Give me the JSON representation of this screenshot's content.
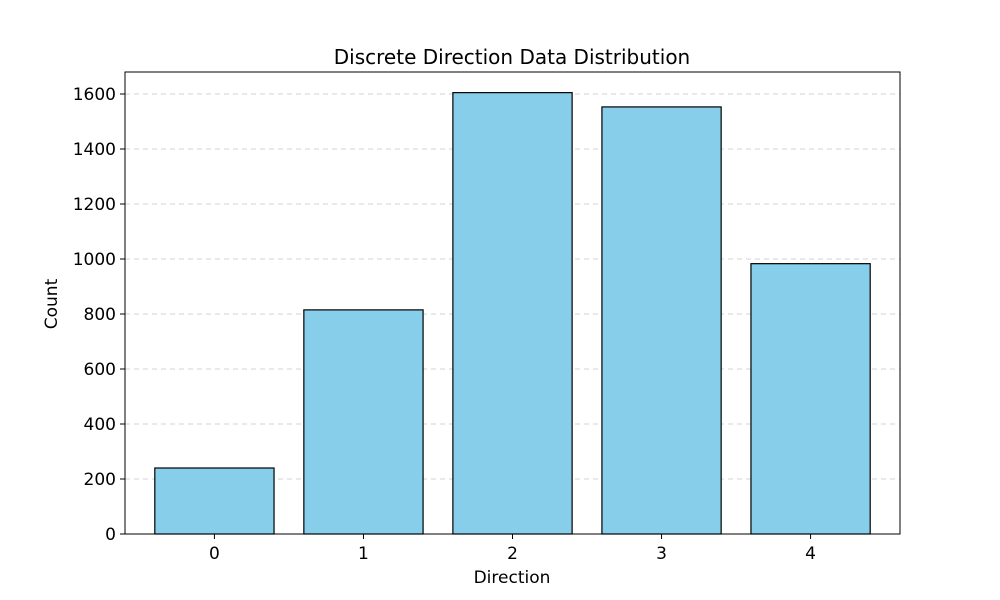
{
  "chart_data": {
    "type": "bar",
    "title": "Discrete Direction Data Distribution",
    "xlabel": "Direction",
    "ylabel": "Count",
    "categories": [
      "0",
      "1",
      "2",
      "3",
      "4"
    ],
    "values": [
      240,
      815,
      1605,
      1553,
      983
    ],
    "ylim": [
      0,
      1680
    ],
    "yticks": [
      0,
      200,
      400,
      600,
      800,
      1000,
      1200,
      1400,
      1600
    ],
    "grid": {
      "y": true,
      "x": false,
      "style": "dashed"
    },
    "legend": "none",
    "colors": {
      "bar_fill": "#87CEEB",
      "bar_edge": "#000000",
      "grid": "#d3d3d3",
      "axes": "#000000"
    }
  }
}
